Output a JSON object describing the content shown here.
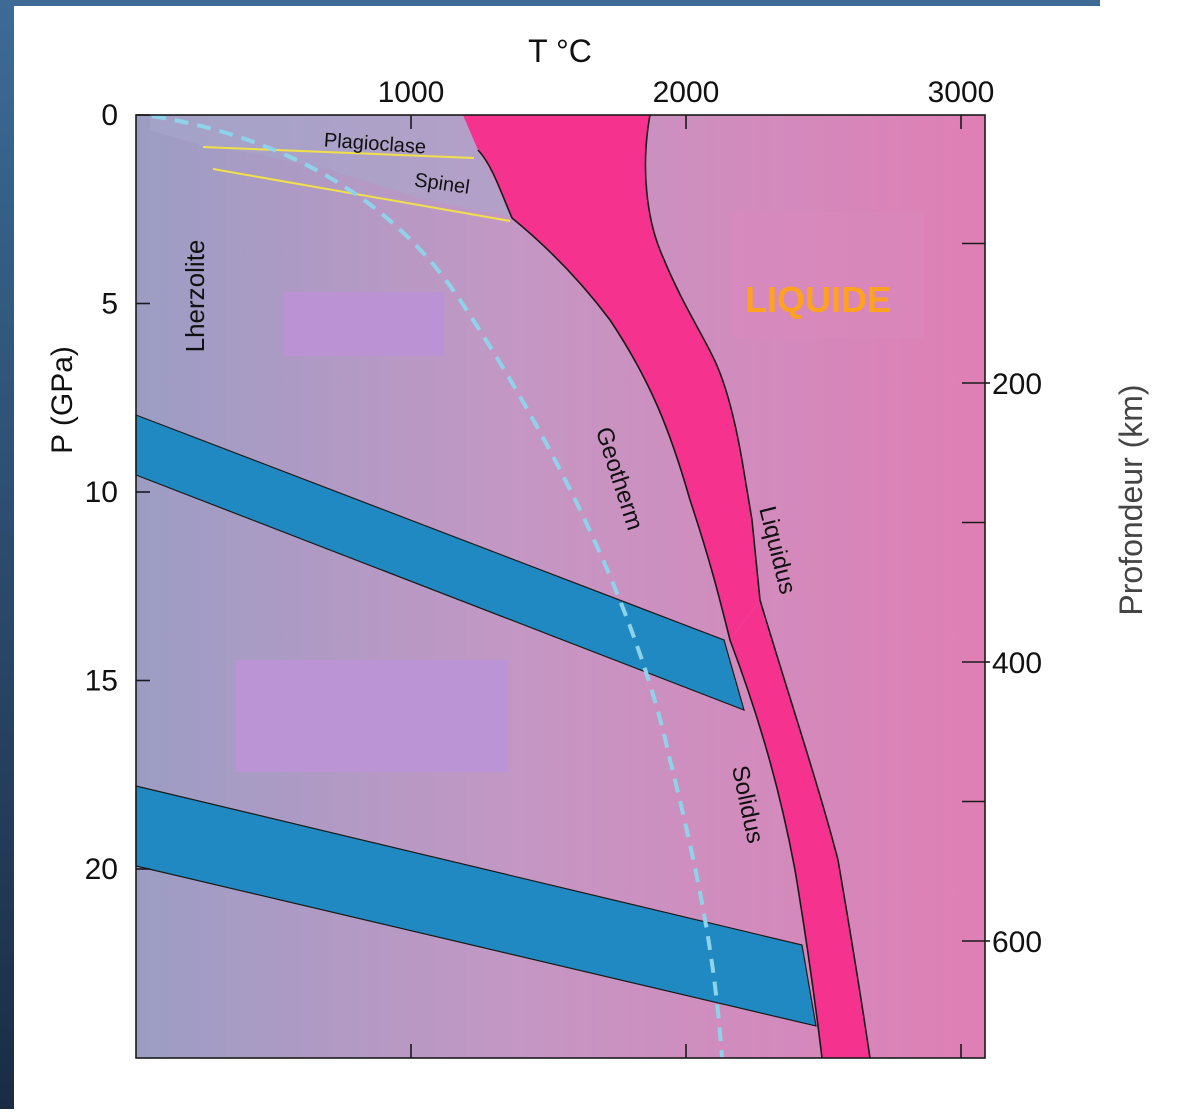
{
  "diagram": {
    "top_axis": {
      "title": "T °C",
      "ticks": [
        {
          "label": "1000",
          "value": 1000
        },
        {
          "label": "2000",
          "value": 2000
        },
        {
          "label": "3000",
          "value": 3000
        }
      ]
    },
    "left_axis": {
      "title": "P (GPa)",
      "ticks": [
        {
          "label": "0",
          "value": 0
        },
        {
          "label": "5",
          "value": 5
        },
        {
          "label": "10",
          "value": 10
        },
        {
          "label": "15",
          "value": 15
        },
        {
          "label": "20",
          "value": 20
        }
      ]
    },
    "right_axis": {
      "title": "Profondeur  (km)",
      "ticks": [
        {
          "label": "200",
          "value": 200
        },
        {
          "label": "400",
          "value": 400
        },
        {
          "label": "600",
          "value": 600
        }
      ]
    },
    "labels": {
      "plagioclase": "Plagioclase",
      "spinel": "Spinel",
      "lherzolite": "Lherzolite",
      "geotherm": "Geotherm",
      "liquidus": "Liquidus",
      "solidus": "Solidus",
      "liquide": "LIQUIDE"
    },
    "colors": {
      "melt_band": "#f5338f",
      "transition_band": "#2089c2",
      "geotherm": "#8fd3ea",
      "phase_lines": "#f2e04a",
      "liquide_label": "#ffa21f",
      "frame_left": "#3a6690"
    }
  }
}
